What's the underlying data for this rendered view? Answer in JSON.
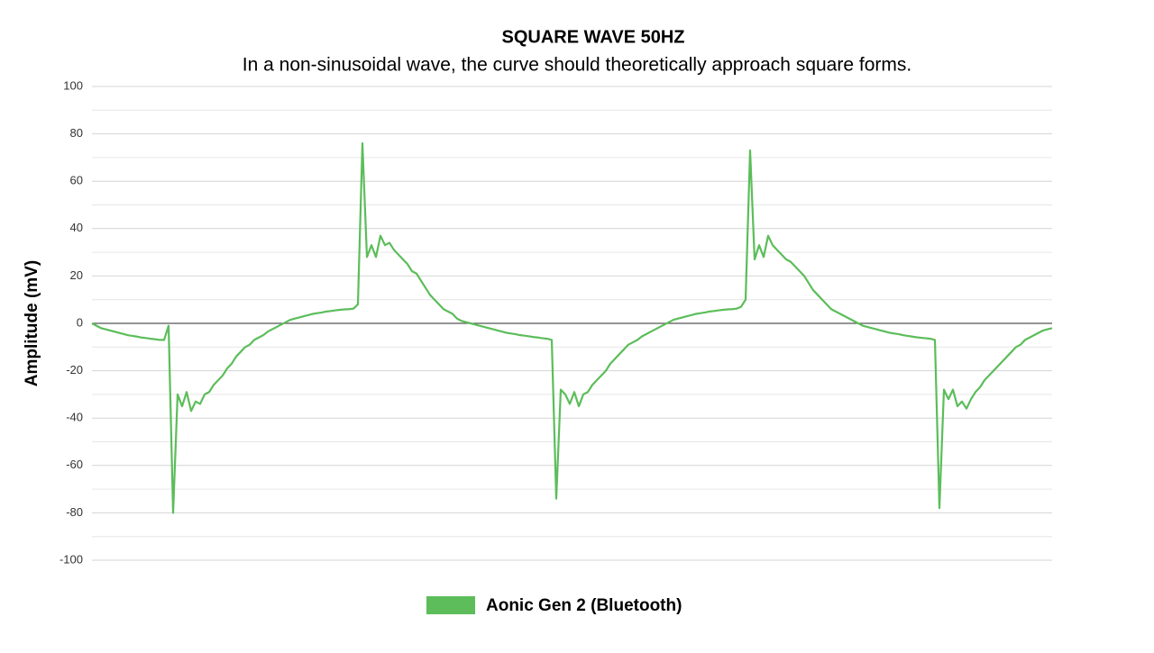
{
  "chart_data": {
    "type": "line",
    "title": "SQUARE WAVE 50HZ",
    "subtitle": "In a non-sinusoidal wave, the curve should theoretically approach square forms.",
    "y_label": "Amplitude (mV)",
    "ylim": [
      -100,
      100
    ],
    "yticks": [
      -100,
      -80,
      -60,
      -40,
      -20,
      0,
      20,
      40,
      60,
      80,
      100
    ],
    "minor_yticks": [
      -90,
      -70,
      -50,
      -30,
      -10,
      10,
      30,
      50,
      70,
      90
    ],
    "grid": true,
    "legend": "bottom",
    "series": [
      {
        "name": "Aonic Gen 2 (Bluetooth)",
        "color": "#5cbd5a",
        "values": [
          0,
          -1,
          -2,
          -2.5,
          -3,
          -3.5,
          -4,
          -4.5,
          -5,
          -5.3,
          -5.6,
          -6,
          -6.2,
          -6.5,
          -6.7,
          -7,
          -7,
          -1,
          -80,
          -30,
          -35,
          -29,
          -37,
          -33,
          -34,
          -30,
          -29,
          -26,
          -24,
          -22,
          -19,
          -17,
          -14,
          -12,
          -10,
          -9,
          -7,
          -6,
          -5,
          -3.5,
          -2.5,
          -1.5,
          -0.5,
          0.5,
          1.5,
          2,
          2.5,
          3,
          3.5,
          4,
          4.3,
          4.6,
          5,
          5.2,
          5.5,
          5.7,
          5.9,
          6,
          6.2,
          8,
          76,
          28,
          33,
          28,
          37,
          33,
          34,
          31,
          29,
          27,
          25,
          22,
          21,
          18,
          15,
          12,
          10,
          8,
          6,
          5,
          4,
          2,
          1,
          0.5,
          0,
          -0.5,
          -1,
          -1.5,
          -2,
          -2.5,
          -3,
          -3.5,
          -4,
          -4.3,
          -4.6,
          -5,
          -5.2,
          -5.5,
          -5.8,
          -6,
          -6.3,
          -6.5,
          -7,
          -74,
          -28,
          -30,
          -34,
          -29,
          -35,
          -30,
          -29,
          -26,
          -24,
          -22,
          -20,
          -17,
          -15,
          -13,
          -11,
          -9,
          -8,
          -7,
          -5.5,
          -4.5,
          -3.5,
          -2.5,
          -1.5,
          -0.5,
          0.5,
          1.5,
          2,
          2.5,
          3,
          3.5,
          4,
          4.3,
          4.6,
          5,
          5.2,
          5.5,
          5.7,
          5.9,
          6,
          6.2,
          7,
          10,
          73,
          27,
          33,
          28,
          37,
          33,
          31,
          29,
          27,
          26,
          24,
          22,
          20,
          17,
          14,
          12,
          10,
          8,
          6,
          5,
          4,
          3,
          2,
          1,
          0,
          -1,
          -1.5,
          -2,
          -2.5,
          -3,
          -3.5,
          -4,
          -4.3,
          -4.6,
          -5,
          -5.3,
          -5.6,
          -5.9,
          -6.1,
          -6.3,
          -6.5,
          -7,
          -78,
          -28,
          -32,
          -28,
          -35,
          -33,
          -36,
          -32,
          -29,
          -27,
          -24,
          -22,
          -20,
          -18,
          -16,
          -14,
          -12,
          -10,
          -9,
          -7,
          -6,
          -5,
          -4,
          -3,
          -2.5,
          -2
        ]
      }
    ]
  }
}
